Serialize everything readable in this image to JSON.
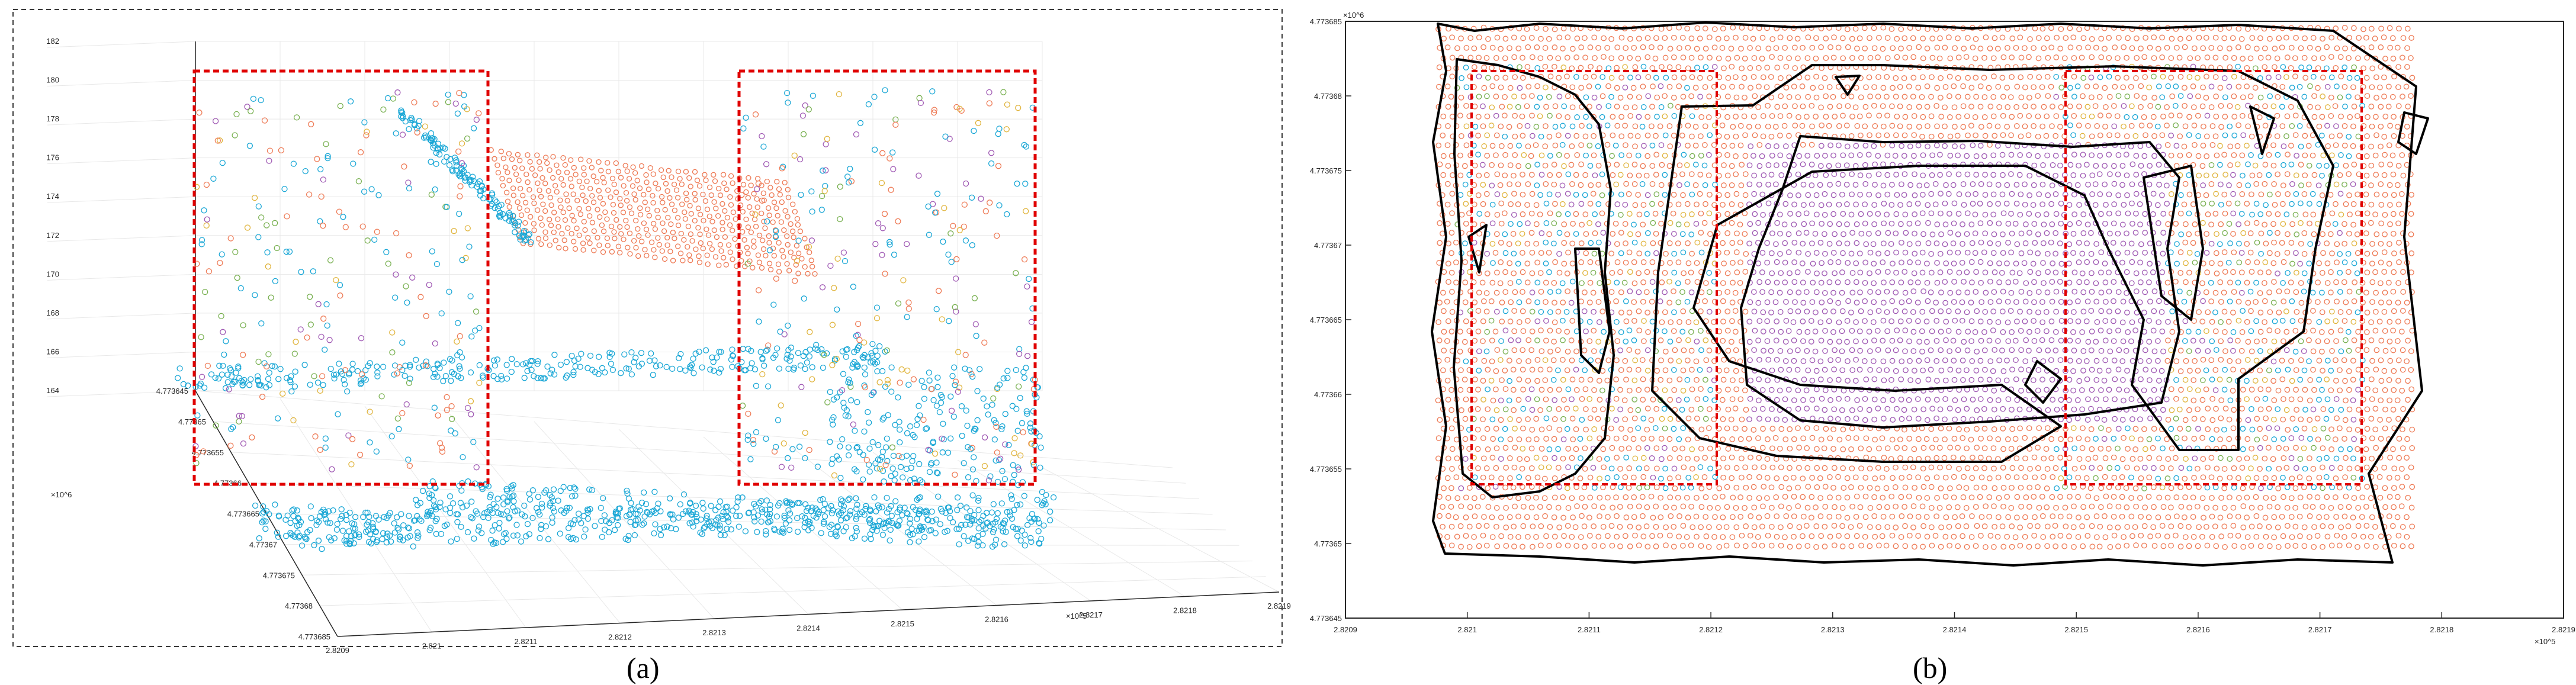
{
  "captions": {
    "a": "(a)",
    "b": "(b)"
  },
  "colors": {
    "ground": "#1aa7d6",
    "building": "#ee7a55",
    "purple": "#a05ab4",
    "yellow": "#e0b43c",
    "green": "#78b050",
    "box": "#e00000",
    "contour": "#000000",
    "axis": "#262626",
    "grid": "#e8e8e8",
    "frame_a": "#3a3a3a"
  },
  "chart_data": [
    {
      "id": "a",
      "type": "scatter",
      "projection": "3d",
      "title": "",
      "xlabel": "",
      "ylabel": "",
      "zlabel": "",
      "grid": true,
      "x_exponent": "×10^5",
      "y_exponent": "×10^6",
      "x_ticks": [
        "2.8209",
        "2.821",
        "2.8211",
        "2.8212",
        "2.8213",
        "2.8214",
        "2.8215",
        "2.8216",
        "2.8217",
        "2.8218",
        "2.8219"
      ],
      "y_ticks": [
        "4.773645",
        "4.77365",
        "4.773655",
        "4.77366",
        "4.773665",
        "4.77367",
        "4.773675",
        "4.77368",
        "4.773685"
      ],
      "z_ticks": [
        "164",
        "166",
        "168",
        "170",
        "172",
        "174",
        "176",
        "178",
        "180",
        "182"
      ],
      "x_lim": [
        2.8209,
        2.8219
      ],
      "y_lim": [
        4.773645,
        4.773685
      ],
      "z_lim": [
        164,
        182
      ],
      "clusters": [
        {
          "color": "ground",
          "shape": "lower ground band",
          "z": 164.5
        },
        {
          "color": "ground",
          "shape": "upper rim band",
          "z": 167
        },
        {
          "color": "building",
          "shape": "roof grid",
          "z": 174
        },
        {
          "color": "mixed",
          "shape": "vegetation scatter",
          "z": 172
        }
      ],
      "highlight_boxes": 2
    },
    {
      "id": "b",
      "type": "scatter",
      "projection": "2d",
      "title": "",
      "xlabel": "",
      "ylabel": "",
      "x_exponent": "×10^5",
      "y_exponent": "×10^6",
      "x_ticks": [
        "2.8209",
        "2.821",
        "2.8211",
        "2.8212",
        "2.8213",
        "2.8214",
        "2.8215",
        "2.8216",
        "2.8217",
        "2.8218",
        "2.8219"
      ],
      "y_ticks": [
        "4.773645",
        "4.77365",
        "4.773655",
        "4.77366",
        "4.773665",
        "4.77367",
        "4.773675",
        "4.77368",
        "4.773685"
      ],
      "x_lim": [
        2.8209,
        2.8219
      ],
      "y_lim": [
        4.773645,
        4.773685
      ],
      "regions": [
        {
          "name": "outer",
          "color": "building",
          "x": [
            2.82094,
            2.82184
          ],
          "y": [
            4.773648,
            4.773684
          ]
        },
        {
          "name": "roof",
          "color": "purple",
          "x": [
            2.82126,
            2.82159
          ],
          "y": [
            4.773655,
            4.773676
          ]
        },
        {
          "name": "left",
          "color": "mixed",
          "x": [
            2.821,
            2.82121
          ],
          "y": [
            4.773652,
            4.77368
          ]
        },
        {
          "name": "right",
          "color": "mixed",
          "x": [
            2.8215,
            2.82168
          ],
          "y": [
            4.773652,
            4.77368
          ]
        }
      ],
      "highlight_boxes": [
        {
          "x": [
            2.821,
            2.82121
          ],
          "y": [
            4.773653,
            4.773681
          ]
        },
        {
          "x": [
            2.8215,
            2.82174
          ],
          "y": [
            4.773653,
            4.773681
          ]
        }
      ]
    }
  ]
}
